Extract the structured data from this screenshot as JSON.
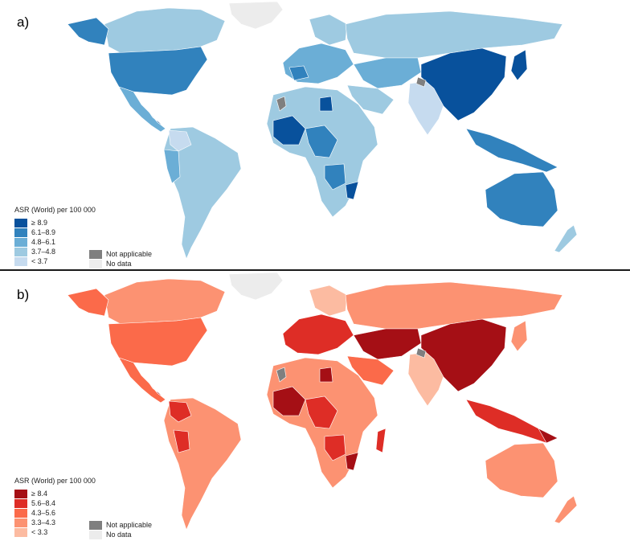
{
  "panels": [
    {
      "label": "a)",
      "legend_title": "ASR (World) per 100 000",
      "classes": [
        {
          "label": "≥ 8.9",
          "color": "#08519c"
        },
        {
          "label": "6.1–8.9",
          "color": "#3182bd"
        },
        {
          "label": "4.8–6.1",
          "color": "#6baed6"
        },
        {
          "label": "3.7–4.8",
          "color": "#9ecae1"
        },
        {
          "label": "< 3.7",
          "color": "#c6dbef"
        }
      ]
    },
    {
      "label": "b)",
      "legend_title": "ASR (World) per 100 000",
      "classes": [
        {
          "label": "≥ 8.4",
          "color": "#a50f15"
        },
        {
          "label": "5.6–8.4",
          "color": "#de2d26"
        },
        {
          "label": "4.3–5.6",
          "color": "#fb6a4a"
        },
        {
          "label": "3.3–4.3",
          "color": "#fc9272"
        },
        {
          "label": "< 3.3",
          "color": "#fcbba1"
        }
      ]
    }
  ],
  "not_applicable": {
    "label": "Not applicable",
    "color": "#7f7f7f"
  },
  "no_data": {
    "label": "No data",
    "color": "#ececec"
  }
}
